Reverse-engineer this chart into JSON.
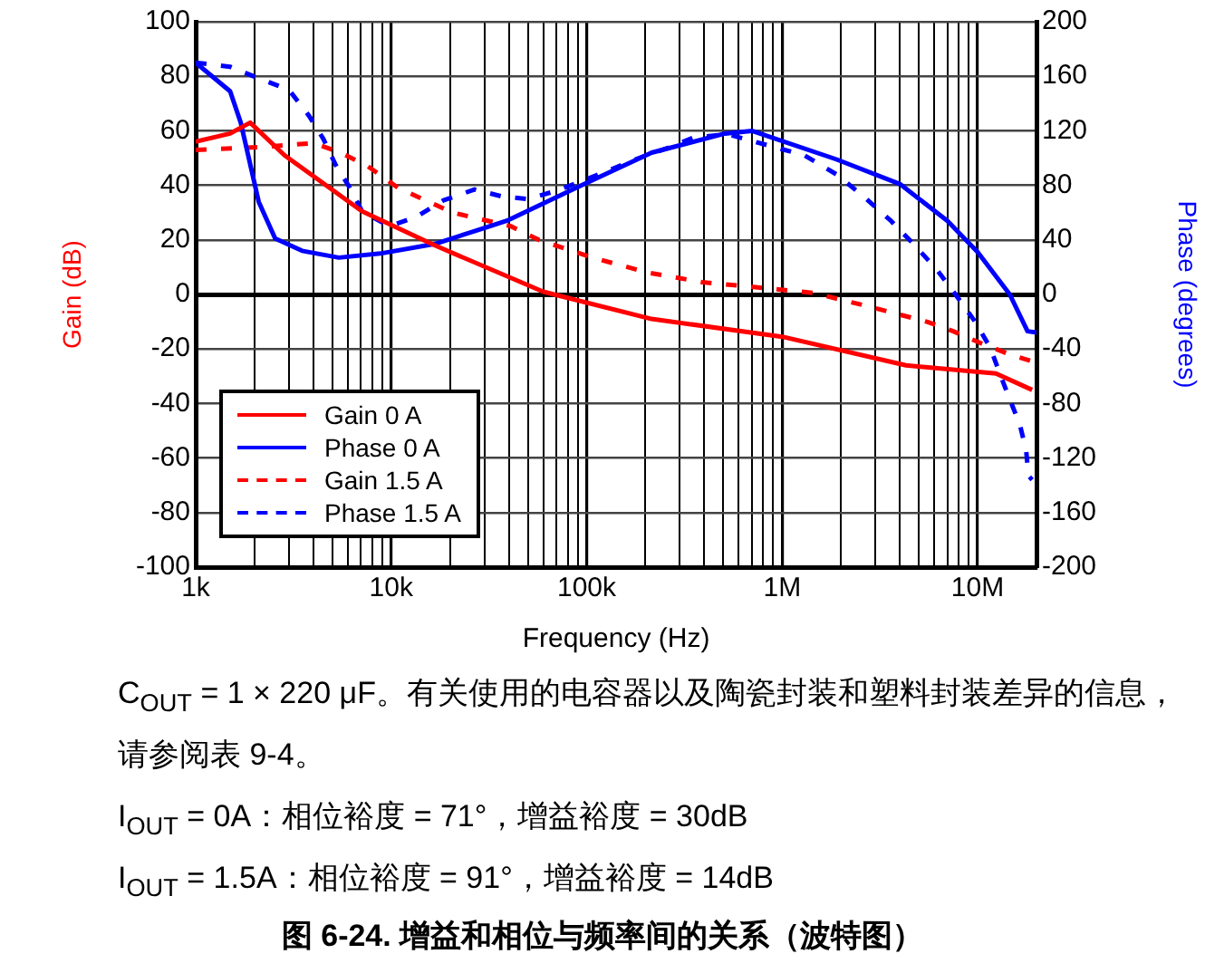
{
  "chart_data": {
    "type": "line",
    "title": "图 6-24. 增益和相位与频率间的关系（波特图）",
    "xlabel": "Frequency (Hz)",
    "ylabel": "Gain (dB)",
    "y2label": "Phase (degrees)",
    "log": "x",
    "grid": true,
    "legend": "bottom left",
    "marker": "none",
    "xlim": [
      1000,
      20000000
    ],
    "xticks": [
      {
        "value": 1000,
        "label": "1k"
      },
      {
        "value": 2000,
        "label": null
      },
      {
        "value": 3000,
        "label": null
      },
      {
        "value": 4000,
        "label": null
      },
      {
        "value": 5000,
        "label": null
      },
      {
        "value": 6000,
        "label": null
      },
      {
        "value": 7000,
        "label": null
      },
      {
        "value": 8000,
        "label": null
      },
      {
        "value": 9000,
        "label": null
      },
      {
        "value": 10000,
        "label": "10k"
      },
      {
        "value": 20000,
        "label": null
      },
      {
        "value": 30000,
        "label": null
      },
      {
        "value": 40000,
        "label": null
      },
      {
        "value": 50000,
        "label": null
      },
      {
        "value": 60000,
        "label": null
      },
      {
        "value": 70000,
        "label": null
      },
      {
        "value": 80000,
        "label": null
      },
      {
        "value": 90000,
        "label": null
      },
      {
        "value": 100000,
        "label": "100k"
      },
      {
        "value": 200000,
        "label": null
      },
      {
        "value": 300000,
        "label": null
      },
      {
        "value": 400000,
        "label": null
      },
      {
        "value": 500000,
        "label": null
      },
      {
        "value": 600000,
        "label": null
      },
      {
        "value": 700000,
        "label": null
      },
      {
        "value": 800000,
        "label": null
      },
      {
        "value": 900000,
        "label": null
      },
      {
        "value": 1000000,
        "label": "1M"
      },
      {
        "value": 2000000,
        "label": null
      },
      {
        "value": 3000000,
        "label": null
      },
      {
        "value": 4000000,
        "label": null
      },
      {
        "value": 5000000,
        "label": null
      },
      {
        "value": 6000000,
        "label": null
      },
      {
        "value": 7000000,
        "label": null
      },
      {
        "value": 8000000,
        "label": null
      },
      {
        "value": 9000000,
        "label": null
      },
      {
        "value": 10000000,
        "label": "10M"
      },
      {
        "value": 20000000,
        "label": null
      }
    ],
    "ylim": [
      -100,
      100
    ],
    "yticks": [
      -100,
      -80,
      -60,
      -40,
      -20,
      0,
      20,
      40,
      60,
      80,
      100
    ],
    "y2lim": [
      -200,
      200
    ],
    "y2ticks": [
      -200,
      -160,
      -120,
      -80,
      -40,
      0,
      40,
      80,
      120,
      160,
      200
    ],
    "series": [
      {
        "name": "Gain 0 A",
        "color": "#ff0000",
        "line_style": "solid",
        "x": [
          1000,
          1500,
          1900,
          2850,
          7100,
          16700,
          60000,
          215000,
          1000000,
          4300000,
          12400000,
          19000000
        ],
        "values": [
          56,
          59,
          63,
          51,
          30.5,
          18,
          1,
          -9,
          -15.5,
          -26,
          -29,
          -35
        ]
      },
      {
        "name": "Phase 0 A",
        "color": "#0000ff",
        "line_style": "solid",
        "axis": "y2",
        "x": [
          1000,
          1500,
          1700,
          2100,
          2550,
          3500,
          5400,
          8800,
          16700,
          39000,
          91000,
          215000,
          510000,
          700000,
          1900000,
          4000000,
          7000000,
          10000000,
          14600000,
          18000000,
          20000000
        ],
        "values": [
          170,
          149,
          126,
          68,
          41,
          32,
          27,
          30,
          37,
          54,
          79,
          104,
          118,
          120,
          99,
          81,
          54,
          31,
          0,
          -27,
          -28
        ]
      },
      {
        "name": "Gain 1.5 A",
        "color": "#ff0000",
        "line_style": "dashed",
        "x": [
          1000,
          2100,
          4000,
          5500,
          7600,
          10900,
          20600,
          41000,
          57000,
          107000,
          206000,
          390000,
          770000,
          1460000,
          2800000,
          5500000,
          7500000,
          10500000,
          14600000,
          20000000
        ],
        "values": [
          53,
          54,
          55.5,
          52,
          47,
          39,
          30,
          25,
          20,
          13.5,
          8,
          4.5,
          2.5,
          0.5,
          -4.5,
          -10,
          -13.5,
          -18,
          -22,
          -25
        ]
      },
      {
        "name": "Phase 1.5 A",
        "color": "#0000ff",
        "line_style": "dashed",
        "axis": "y2",
        "x": [
          1000,
          1500,
          2060,
          3000,
          3800,
          4500,
          5200,
          6100,
          7100,
          9800,
          13500,
          18500,
          26700,
          36600,
          50000,
          70000,
          98000,
          135000,
          185000,
          255000,
          350000,
          480000,
          510000,
          1300000,
          1900000,
          2600000,
          3600000,
          4700000,
          6200000,
          7700000,
          9600000,
          11600000,
          12900000,
          14600000,
          16400000,
          17700000,
          18200000,
          19000000
        ],
        "values": [
          170,
          167,
          159,
          150,
          131,
          114,
          95,
          79,
          61,
          50,
          57,
          69,
          77,
          72,
          70,
          76,
          84,
          92,
          100,
          107,
          115,
          117,
          118,
          102,
          88,
          72,
          54,
          37,
          18,
          0,
          -19,
          -39,
          -57,
          -77,
          -95,
          -114,
          -133,
          -136
        ]
      }
    ],
    "annotations": [
      "C$_{OUT}$ = 1 × 220 μF。有关使用的电容器以及陶瓷封装和塑料封装差异的信息，请参阅表 9-4。",
      "I$_{OUT}$ = 0A：相位裕度 = 71°，增益裕度 = 30dB",
      "I$_{OUT}$ = 1.5A：相位裕度 = 91°，增益裕度 = 14dB"
    ]
  }
}
